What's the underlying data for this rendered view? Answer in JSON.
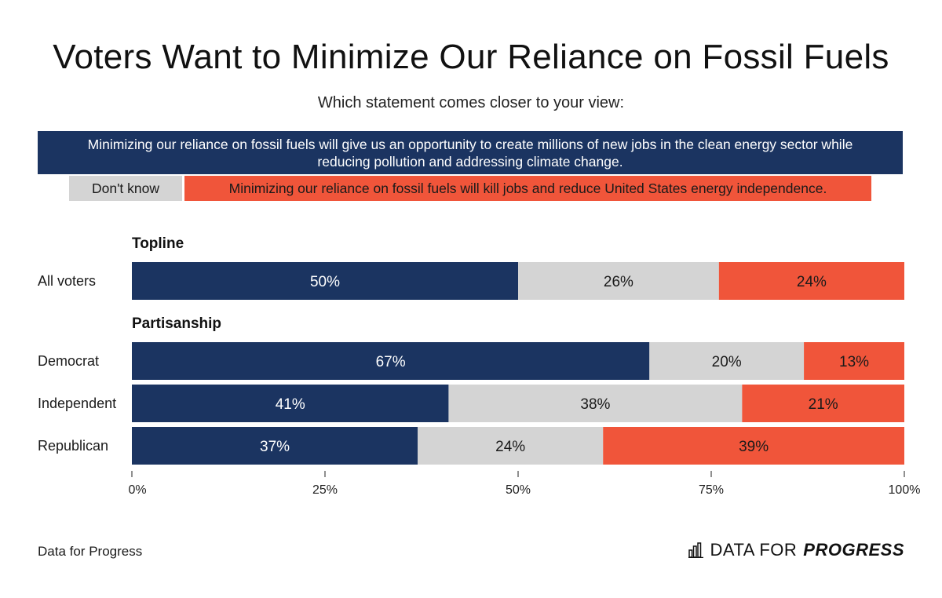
{
  "title": "Voters Want to Minimize Our Reliance on Fossil Fuels",
  "subtitle": "Which statement comes closer to your view:",
  "legend": {
    "clean_energy": "Minimizing our reliance on fossil fuels will give us an opportunity to create millions of new jobs in the clean energy sector while reducing pollution and addressing climate change.",
    "dont_know": "Don't know",
    "kill_jobs": "Minimizing our reliance on fossil fuels will kill jobs and reduce United States energy independence."
  },
  "sections": {
    "topline": "Topline",
    "partisanship": "Partisanship"
  },
  "footer": {
    "source": "Data for Progress",
    "brand_plain": "DATA FOR",
    "brand_bold": "PROGRESS"
  },
  "chart_data": {
    "type": "bar",
    "orientation": "horizontal",
    "stacked": true,
    "categories": [
      "All voters",
      "Democrat",
      "Independent",
      "Republican"
    ],
    "series": [
      {
        "name": "Minimizing our reliance on fossil fuels will give us an opportunity to create millions of new jobs in the clean energy sector while reducing pollution and addressing climate change.",
        "values": [
          50,
          67,
          41,
          37
        ],
        "color": "#1b3461",
        "label_color": "#ffffff"
      },
      {
        "name": "Don't know",
        "values": [
          26,
          20,
          38,
          24
        ],
        "color": "#d4d4d4",
        "label_color": "#1a1a1a"
      },
      {
        "name": "Minimizing our reliance on fossil fuels will kill jobs and reduce United States energy independence.",
        "values": [
          24,
          13,
          21,
          39
        ],
        "color": "#f0553a",
        "label_color": "#1a1a1a"
      }
    ],
    "xlim": [
      0,
      100
    ],
    "xticks": [
      0,
      25,
      50,
      75,
      100
    ],
    "xtick_labels": [
      "0%",
      "25%",
      "50%",
      "75%",
      "100%"
    ],
    "value_suffix": "%",
    "grid": false,
    "legend_position": "top"
  }
}
